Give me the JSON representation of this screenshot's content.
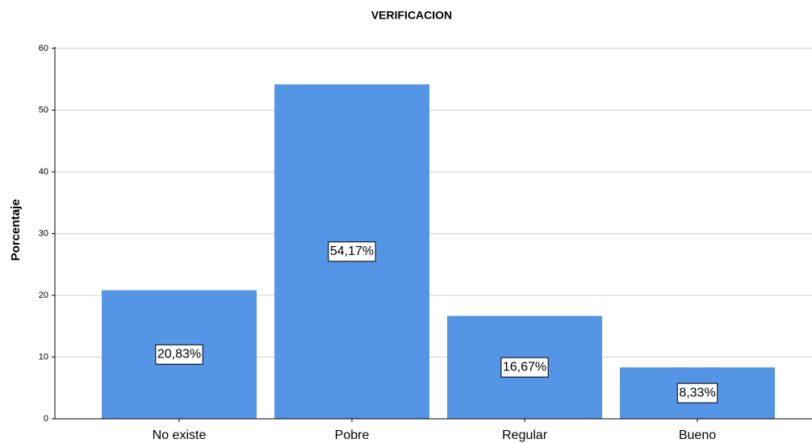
{
  "chart_data": {
    "type": "bar",
    "title": "VERIFICACION",
    "y_label": "Porcentaje",
    "categories": [
      "No existe",
      "Pobre",
      "Regular",
      "Bueno"
    ],
    "values": [
      20.83,
      54.17,
      16.67,
      8.33
    ],
    "value_labels": [
      "20,83%",
      "54,17%",
      "16,67%",
      "8,33%"
    ],
    "color": "#5595e5",
    "ylim": [
      0,
      60
    ],
    "yticks": [
      0,
      10,
      20,
      30,
      40,
      50,
      60
    ],
    "grid": true
  }
}
